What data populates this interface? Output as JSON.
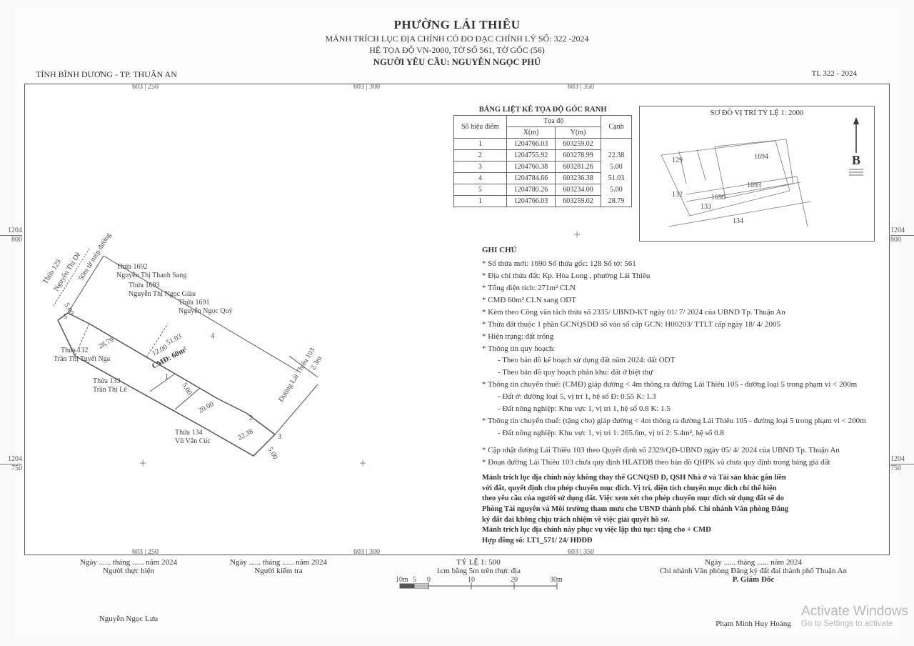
{
  "header": {
    "title": "PHƯỜNG LÁI THIÊU",
    "line2": "MẢNH TRÍCH LỤC ĐỊA CHÍNH CÓ ĐO ĐẠC CHỈNH LÝ SỐ: 322 -2024",
    "line3": "HỆ TỌA ĐỘ VN-2000, TỜ SỐ 561, TỜ GỐC (56)",
    "line4": "NGƯỜI YÊU CẦU: NGUYỄN NGỌC PHÚ",
    "province": "TỈNH BÌNH DƯƠNG - TP. THUẬN AN",
    "tl": "TL 322 - 2024"
  },
  "grid": {
    "top": [
      {
        "x": "603",
        "y": "250"
      },
      {
        "x": "603",
        "y": "300"
      },
      {
        "x": "603",
        "y": "350"
      }
    ],
    "bottom": [
      {
        "x": "603",
        "y": "250"
      },
      {
        "x": "603",
        "y": "300"
      },
      {
        "x": "603",
        "y": "350"
      }
    ],
    "left_top": {
      "a": "1204",
      "b": "800"
    },
    "left_bot": {
      "a": "1204",
      "b": "750"
    },
    "right_top": {
      "a": "1204",
      "b": "800"
    },
    "right_bot": {
      "a": "1204",
      "b": "750"
    }
  },
  "coord_table": {
    "caption": "BẢNG LIỆT KÊ TỌA ĐỘ GÓC RANH",
    "headers": {
      "sh": "Số hiệu điểm",
      "td": "Tọa độ",
      "x": "X(m)",
      "y": "Y(m)",
      "c": "Cạnh"
    },
    "rows": [
      {
        "n": "1",
        "x": "1204766.03",
        "y": "603259.02",
        "c": ""
      },
      {
        "n": "2",
        "x": "1204755.92",
        "y": "603278.99",
        "c": "22.38"
      },
      {
        "n": "3",
        "x": "1204760.38",
        "y": "603281.26",
        "c": "5.00"
      },
      {
        "n": "4",
        "x": "1204784.66",
        "y": "603236.38",
        "c": "51.03"
      },
      {
        "n": "5",
        "x": "1204780.26",
        "y": "603234.00",
        "c": "5.00"
      },
      {
        "n": "1",
        "x": "1204766.03",
        "y": "603259.02",
        "c": "28.79"
      }
    ]
  },
  "minimap": {
    "title": "SƠ ĐỒ VỊ TRÍ TỶ LỆ 1: 2000",
    "labels": {
      "l129": "129",
      "l132": "132",
      "l133": "133",
      "l134": "134",
      "l1693": "1693",
      "l1694": "1694",
      "l1690": "1690"
    }
  },
  "plot": {
    "t129": "Thửa 129",
    "n129": "Nguyễn Thị Dê",
    "t1692": "Thửa 1692",
    "n1692": "Nguyễn Thị Thanh Sang",
    "t1693": "Thửa 1693",
    "n1693": "Nguyễn Thị Ngọc Giàu",
    "t1691": "Thửa 1691",
    "n1691": "Nguyễn Ngọc Quý",
    "t132": "Thửa 132",
    "n132": "Trần Thị Tuyết Nga",
    "t133": "Thửa 133",
    "n133": "Trần Thị Lê",
    "t134": "Thửa 134",
    "n134": "Vũ Văn Cúc",
    "mep": "50m từ mép đường",
    "dim_2879": "28.79",
    "dim_5103": "51.03",
    "dim_12": "12.00",
    "dim_20": "20.00",
    "dim_2238": "22.38",
    "dim_500a": "5.00",
    "dim_500b": "5.00",
    "dim_23": "2.3m",
    "cmd": "CMĐ: 60m²",
    "road": "Đường Lái Thiêu 103",
    "p1": "1",
    "p2": "2",
    "p3": "3",
    "p4": "4",
    "p5": "5"
  },
  "notes": {
    "heading": "GHI CHÚ",
    "r1": "* Số thửa mới:  1690    Số thửa gốc:  128          Sổ tờ:   561",
    "r2": "* Địa chỉ thửa đất: Kp. Hòa Long , phường Lái Thiêu",
    "r3": "* Tổng diện tích:  271m² CLN",
    "r4": "* CMĐ 60m² CLN sang ODT",
    "r5": "* Kèm theo Công văn tách thửa số 2335/ UBND-KT ngày 01/ 7/ 2024 của UBND Tp. Thuận An",
    "r6": "* Thửa đất thuộc 1 phần GCNQSDĐ số vào sổ cấp GCN:  H00203/ TTLT cấp ngày 18/ 4/ 2005",
    "r7": "* Hiện trạng:  đất trống",
    "r8": "* Thông tin quy hoạch:",
    "r8a": "- Theo bản đồ kế hoạch sử dụng đất năm 2024:  đất ODT",
    "r8b": "- Theo bản đồ quy hoạch phân khu:  đất ở biệt thự",
    "r9": "* Thông tin chuyển thuế: (CMĐ) giáp đường < 4m thông ra đường Lái Thiêu 105 - đường loại 5 trong phạm vi < 200m",
    "r9a": "- Đất ở: đường loại 5, vị trí 1, hệ số Đ: 0.55                K: 1.3",
    "r9b": "- Đất nông nghiệp:  Khu vực 1, vị trí 1, hệ số 0.8             K: 1.5",
    "r10": "* Thông tin chuyển thuế: (tặng cho) giáp đường < 4m thông ra đường Lái Thiêu 105 - đường loại 5 trong phạm vi < 200m",
    "r10a": "- Đất nông nghiệp:  Khu vực 1, vị trí 1: 265.6m, vị trí 2: 5.4m², hệ số 0.8",
    "r11": "* Cập nhật đường Lái Thiêu 103 theo Quyết định số 2329/QĐ-UBND ngày 05/ 4/ 2024 của UBND Tp. Thuận An",
    "r12": "* Đoạn đường Lái Thiêu 103 chưa quy định HLATĐB theo bản đồ QHPK và chưa quy định trong bảng giá đất",
    "b1": "Mảnh trích lục địa chính này không thay thế GCNQSD Đ, QSH Nhà ở và Tài sản khác gắn liền",
    "b2": "với đất, quyết định cho phép chuyển mục đích. Vị trí, diện tích chuyển mục đích chỉ thể hiện",
    "b3": "theo yêu cầu của người sử dụng đất. Việc xem xét cho phép chuyển mục đích sử dụng đất sẽ do",
    "b4": "Phòng Tài nguyên và Môi trường tham mưu cho UBND thành phố. Chi nhánh Văn phòng Đăng",
    "b5": "ký đất đai không chịu trách nhiệm về việc giải quyết hồ sơ.",
    "b6": "Mảnh trích lục địa chính này phục vụ việc lập thủ tục: tặng cho + CMĐ",
    "b7": "Hợp đồng số:  LT1_571/ 24/ HĐĐĐ"
  },
  "footer": {
    "date1": "Ngày ...... tháng ...... năm 2024",
    "role1": "Người thực hiện",
    "name1": "Nguyễn Ngọc Lưu",
    "date2": "Ngày ...... tháng ...... năm 2024",
    "role2": "Người kiểm tra",
    "scale1": "TỶ LỆ 1: 500",
    "scale2": "1cm bằng 5m trên thực địa",
    "s_ticks": {
      "a": "10m",
      "b": "5",
      "c": "0",
      "d": "10",
      "e": "20",
      "f": "30m"
    },
    "date3": "Ngày ...... tháng ...... năm 2024",
    "org": "Chi nhánh Văn phòng Đăng ký đất đai thành phố Thuận An",
    "role3": "P. Giám Đốc",
    "name3": "Phạm Minh Huy Hoàng"
  },
  "watermark": {
    "l1": "Activate Windows",
    "l2": "Go to Settings to activate"
  }
}
